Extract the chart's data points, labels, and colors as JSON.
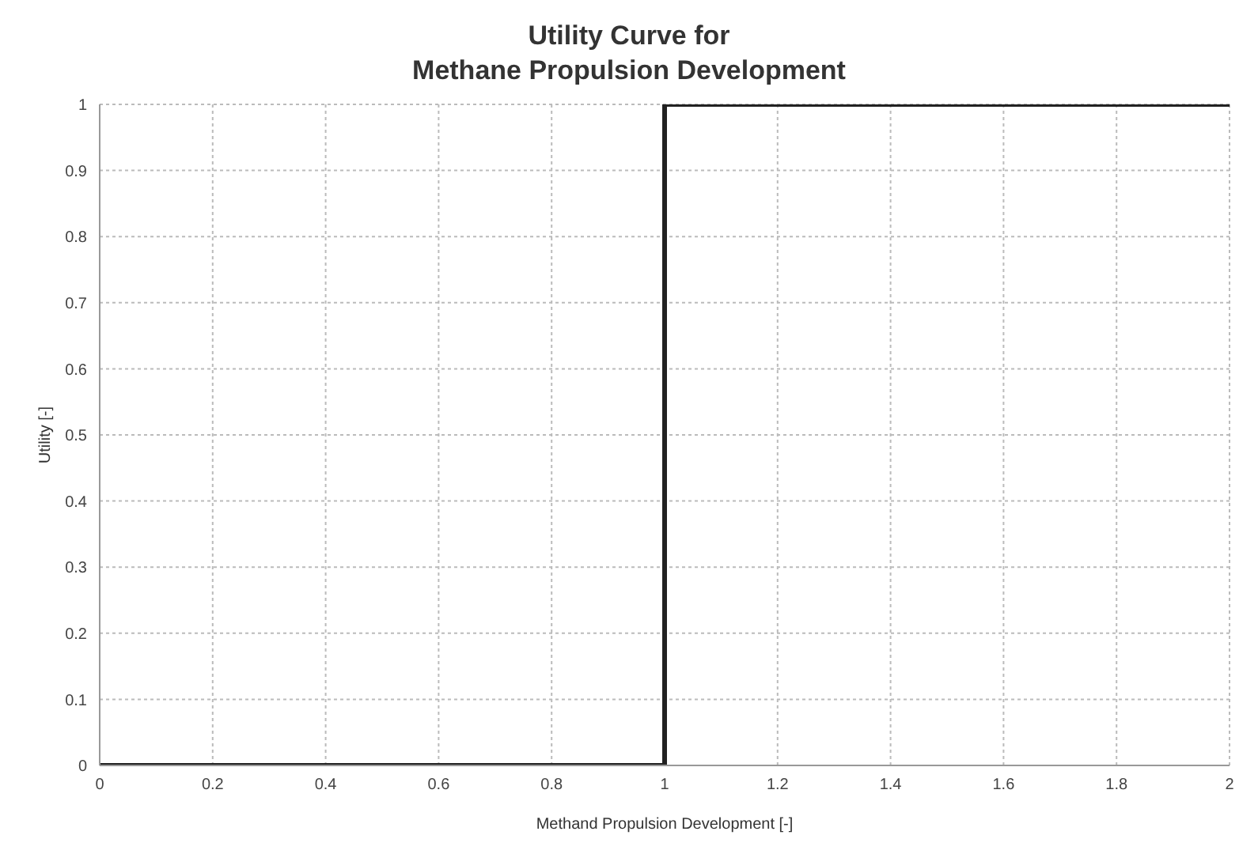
{
  "chart_data": {
    "type": "line",
    "title": "Utility Curve for\nMethane Propulsion Development",
    "xlabel": "Methand Propulsion Development [-]",
    "ylabel": "Utility [-]",
    "x": [
      0,
      1,
      1,
      2
    ],
    "series": [
      {
        "color": "#222222",
        "values": [
          0,
          0,
          1,
          1
        ]
      }
    ],
    "xlim": [
      0,
      2
    ],
    "xticks": [
      0,
      0.2,
      0.4,
      0.6,
      0.8,
      1,
      1.2,
      1.4,
      1.6,
      1.8,
      2
    ],
    "ylim": [
      0,
      1
    ],
    "yticks": [
      0,
      0.1,
      0.2,
      0.3,
      0.4,
      0.5,
      0.6,
      0.7,
      0.8,
      0.9,
      1
    ],
    "grid": true,
    "legend": false
  }
}
